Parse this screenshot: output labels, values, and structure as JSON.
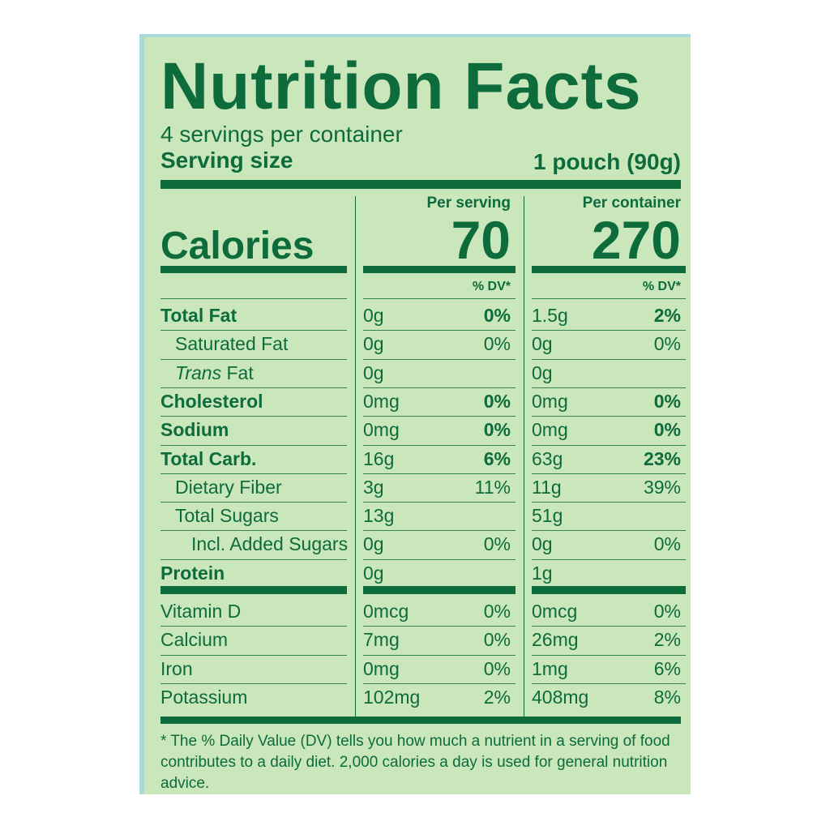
{
  "title": "Nutrition Facts",
  "servings": "4 servings per container",
  "serving_size": {
    "label": "Serving size",
    "value": "1 pouch (90g)"
  },
  "columns": [
    "Per serving",
    "Per container"
  ],
  "calories": {
    "label": "Calories",
    "values": [
      "70",
      "270"
    ]
  },
  "dv_header": [
    "% DV*",
    "% DV*"
  ],
  "rows": [
    {
      "name": "Total Fat",
      "bold": true,
      "level": 0,
      "cells": [
        [
          "0g",
          "0%"
        ],
        [
          "1.5g",
          "2%"
        ]
      ]
    },
    {
      "name": "Saturated Fat",
      "bold": false,
      "level": 1,
      "cells": [
        [
          "0g",
          "0%"
        ],
        [
          "0g",
          "0%"
        ]
      ]
    },
    {
      "prefix": "Trans",
      "name": "Fat",
      "bold": false,
      "level": 1,
      "cells": [
        [
          "0g"
        ],
        [
          "0g"
        ]
      ]
    },
    {
      "name": "Cholesterol",
      "bold": true,
      "level": 0,
      "cells": [
        [
          "0mg",
          "0%"
        ],
        [
          "0mg",
          "0%"
        ]
      ]
    },
    {
      "name": "Sodium",
      "bold": true,
      "level": 0,
      "cells": [
        [
          "0mg",
          "0%"
        ],
        [
          "0mg",
          "0%"
        ]
      ]
    },
    {
      "name": "Total Carb.",
      "bold": true,
      "level": 0,
      "cells": [
        [
          "16g",
          "6%"
        ],
        [
          "63g",
          "23%"
        ]
      ]
    },
    {
      "name": "Dietary Fiber",
      "bold": false,
      "level": 1,
      "cells": [
        [
          "3g",
          "11%"
        ],
        [
          "11g",
          "39%"
        ]
      ]
    },
    {
      "name": "Total Sugars",
      "bold": false,
      "level": 1,
      "cells": [
        [
          "13g"
        ],
        [
          "51g"
        ]
      ]
    },
    {
      "name": "Incl. Added Sugars",
      "bold": false,
      "level": 2,
      "cells": [
        [
          "0g",
          "0%"
        ],
        [
          "0g",
          "0%"
        ]
      ]
    },
    {
      "name": "Protein",
      "bold": true,
      "level": 0,
      "cells": [
        [
          "0g"
        ],
        [
          "1g"
        ]
      ]
    }
  ],
  "vitamins": [
    {
      "name": "Vitamin D",
      "cells": [
        [
          "0mcg",
          "0%"
        ],
        [
          "0mcg",
          "0%"
        ]
      ]
    },
    {
      "name": "Calcium",
      "cells": [
        [
          "7mg",
          "0%"
        ],
        [
          "26mg",
          "2%"
        ]
      ]
    },
    {
      "name": "Iron",
      "cells": [
        [
          "0mg",
          "0%"
        ],
        [
          "1mg",
          "6%"
        ]
      ]
    },
    {
      "name": "Potassium",
      "cells": [
        [
          "102mg",
          "2%"
        ],
        [
          "408mg",
          "8%"
        ]
      ]
    }
  ],
  "footnote": "* The % Daily Value (DV) tells you how much a nutrient in a serving of food contributes to a daily diet. 2,000 calories a day is used for general nutrition advice."
}
